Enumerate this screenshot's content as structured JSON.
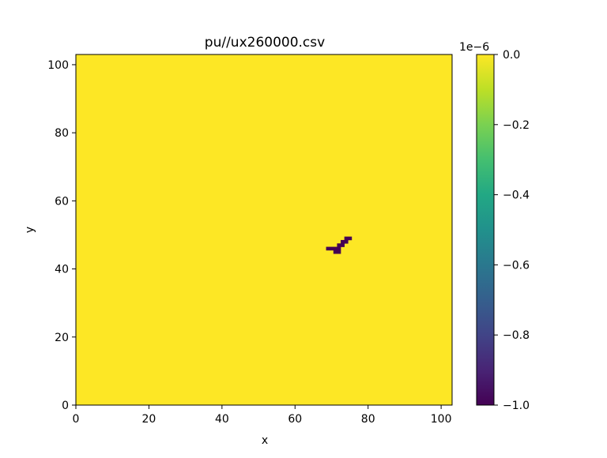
{
  "chart_data": {
    "type": "heatmap",
    "title": "pu//ux260000.csv",
    "xlabel": "x",
    "ylabel": "y",
    "xlim": [
      0,
      103
    ],
    "ylim": [
      0,
      103
    ],
    "x_ticks": [
      0,
      20,
      40,
      60,
      80,
      100
    ],
    "y_ticks": [
      0,
      20,
      40,
      60,
      80,
      100
    ],
    "x_tick_labels": [
      "0",
      "20",
      "40",
      "60",
      "80",
      "100"
    ],
    "y_tick_labels": [
      "0",
      "20",
      "40",
      "60",
      "80",
      "100"
    ],
    "background_value": 0.0,
    "cells": [
      {
        "x": 69,
        "y": 46,
        "value": -1e-06
      },
      {
        "x": 70,
        "y": 46,
        "value": -1e-06
      },
      {
        "x": 71,
        "y": 46,
        "value": -1e-06
      },
      {
        "x": 71,
        "y": 45,
        "value": -1e-06
      },
      {
        "x": 72,
        "y": 45,
        "value": -1e-06
      },
      {
        "x": 72,
        "y": 46,
        "value": -1e-06
      },
      {
        "x": 72,
        "y": 47,
        "value": -1e-06
      },
      {
        "x": 73,
        "y": 47,
        "value": -1e-06
      },
      {
        "x": 73,
        "y": 48,
        "value": -1e-06
      },
      {
        "x": 74,
        "y": 48,
        "value": -1e-06
      },
      {
        "x": 74,
        "y": 49,
        "value": -1e-06
      },
      {
        "x": 75,
        "y": 49,
        "value": -1e-06
      }
    ],
    "colorbar": {
      "colormap": "viridis",
      "range": [
        -1e-06,
        0.0
      ],
      "offset_label": "1e−6",
      "ticks": [
        0.0,
        -0.2,
        -0.4,
        -0.6,
        -0.8,
        -1.0
      ],
      "tick_labels": [
        "0.0",
        "−0.2",
        "−0.4",
        "−0.6",
        "−0.8",
        "−1.0"
      ]
    },
    "colors": {
      "min": "#440154",
      "max": "#fde725"
    }
  }
}
